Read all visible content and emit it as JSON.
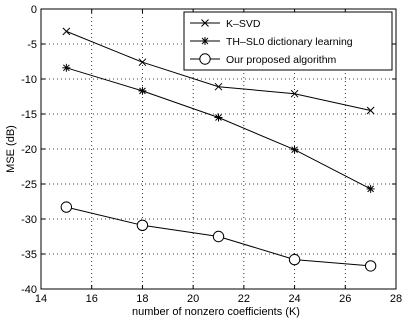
{
  "chart_data": {
    "type": "line",
    "title": "",
    "xlabel": "number of nonzero coefficients (K)",
    "ylabel": "MSE (dB)",
    "xlim": [
      14,
      28
    ],
    "ylim": [
      -40,
      0
    ],
    "x_ticks": [
      14,
      16,
      18,
      20,
      22,
      24,
      26,
      28
    ],
    "y_ticks": [
      -40,
      -35,
      -30,
      -25,
      -20,
      -15,
      -10,
      -5,
      0
    ],
    "grid": true,
    "grid_style": "dotted",
    "legend_position": "top-right",
    "x": [
      15,
      18,
      21,
      24,
      27
    ],
    "series": [
      {
        "name": "K–SVD",
        "marker": "x",
        "color": "#000000",
        "values": [
          -3.2,
          -7.6,
          -11.1,
          -12.1,
          -14.5
        ]
      },
      {
        "name": "TH–SL0 dictionary learning",
        "marker": "*",
        "color": "#000000",
        "values": [
          -8.4,
          -11.7,
          -15.5,
          -20.1,
          -25.7
        ]
      },
      {
        "name": "Our proposed algorithm",
        "marker": "o",
        "color": "#000000",
        "values": [
          -28.3,
          -30.9,
          -32.5,
          -35.8,
          -36.7
        ]
      }
    ]
  }
}
